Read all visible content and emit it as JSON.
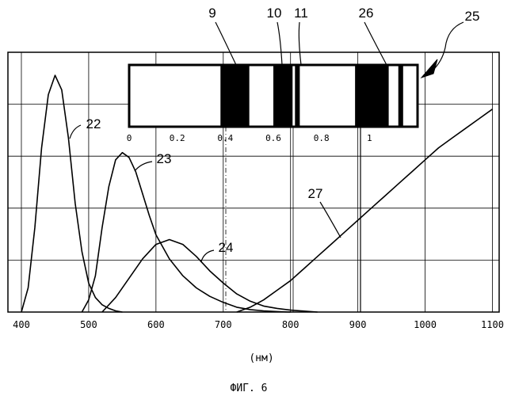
{
  "chart_data": {
    "type": "line",
    "x_ticks": [
      "400",
      "500",
      "600",
      "700",
      "800",
      "900",
      "1000",
      "1100"
    ],
    "xlim": [
      400,
      1100
    ],
    "ylim": [
      0,
      1
    ],
    "grid": true,
    "xlabel": "(нм)",
    "caption": "ФИГ. 6",
    "series": [
      {
        "name": "22",
        "color": "#000000",
        "x": [
          400,
          410,
          420,
          430,
          440,
          450,
          460,
          470,
          480,
          490,
          500,
          510,
          520,
          530,
          540,
          550
        ],
        "y": [
          0.0,
          0.1,
          0.35,
          0.68,
          0.9,
          0.98,
          0.92,
          0.72,
          0.45,
          0.25,
          0.12,
          0.06,
          0.03,
          0.015,
          0.005,
          0.0
        ]
      },
      {
        "name": "23",
        "color": "#000000",
        "x": [
          490,
          500,
          510,
          520,
          530,
          540,
          550,
          560,
          570,
          580,
          590,
          600,
          620,
          640,
          660,
          680,
          700,
          720,
          740,
          760,
          780,
          800
        ],
        "y": [
          0.0,
          0.05,
          0.15,
          0.35,
          0.52,
          0.63,
          0.66,
          0.64,
          0.58,
          0.49,
          0.4,
          0.32,
          0.22,
          0.15,
          0.1,
          0.065,
          0.04,
          0.02,
          0.01,
          0.005,
          0.002,
          0.0
        ]
      },
      {
        "name": "24",
        "color": "#000000",
        "x": [
          520,
          540,
          560,
          580,
          600,
          620,
          640,
          660,
          680,
          700,
          720,
          740,
          760,
          780,
          800,
          820,
          840
        ],
        "y": [
          0.0,
          0.06,
          0.14,
          0.22,
          0.28,
          0.3,
          0.28,
          0.23,
          0.17,
          0.12,
          0.075,
          0.045,
          0.025,
          0.015,
          0.008,
          0.004,
          0.0
        ]
      },
      {
        "name": "27",
        "color": "#000000",
        "x": [
          720,
          740,
          760,
          780,
          800,
          820,
          840,
          860,
          880,
          900,
          920,
          940,
          960,
          980,
          1000,
          1020,
          1040,
          1060,
          1080,
          1100
        ],
        "y": [
          0.0,
          0.02,
          0.05,
          0.09,
          0.13,
          0.18,
          0.23,
          0.28,
          0.33,
          0.38,
          0.43,
          0.48,
          0.53,
          0.58,
          0.63,
          0.68,
          0.72,
          0.76,
          0.8,
          0.84
        ]
      }
    ],
    "inset": {
      "labels": [
        "9",
        "10",
        "11",
        "26",
        "25"
      ],
      "ticks": [
        "0",
        "0.2",
        "0.4",
        "0.6",
        "0.8",
        "1"
      ],
      "xlim": [
        0,
        1.2
      ],
      "dark_bands": [
        [
          0.38,
          0.5
        ],
        [
          0.6,
          0.68
        ],
        [
          0.69,
          0.71
        ],
        [
          0.94,
          1.08
        ],
        [
          1.12,
          1.14
        ]
      ]
    }
  }
}
